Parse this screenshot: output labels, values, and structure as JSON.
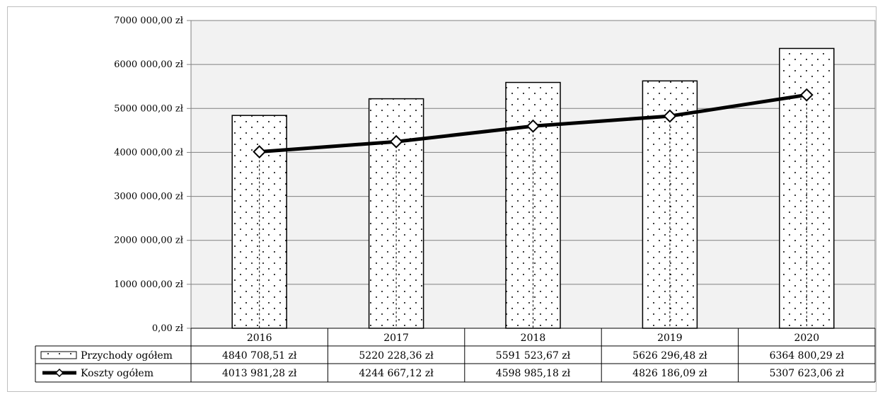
{
  "chart_data": {
    "type": "bar",
    "categories": [
      "2016",
      "2017",
      "2018",
      "2019",
      "2020"
    ],
    "series": [
      {
        "name": "Przychody ogółem",
        "type": "bar",
        "values": [
          4840708.51,
          5220228.36,
          5591523.67,
          5626296.48,
          6364800.29
        ],
        "labels": [
          "4840 708,51 zł",
          "5220 228,36 zł",
          "5591 523,67 zł",
          "5626 296,48 zł",
          "6364 800,29 zł"
        ]
      },
      {
        "name": "Koszty ogółem",
        "type": "line",
        "values": [
          4013981.28,
          4244667.12,
          4598985.18,
          4826186.09,
          5307623.06
        ],
        "labels": [
          "4013 981,28 zł",
          "4244 667,12 zł",
          "4598 985,18 zł",
          "4826 186,09 zł",
          "5307 623,06 zł"
        ]
      }
    ],
    "ylim": [
      0,
      7000000
    ],
    "yticks": [
      0,
      1000000,
      2000000,
      3000000,
      4000000,
      5000000,
      6000000,
      7000000
    ],
    "ytick_labels": [
      "0,00 zł",
      "1000 000,00 zł",
      "2000 000,00 zł",
      "3000 000,00 zł",
      "4000 000,00 zł",
      "5000 000,00 zł",
      "6000 000,00 zł",
      "7000 000,00 zł"
    ],
    "grid": true,
    "legend": "data-table",
    "colors": {
      "plot_background": "#f2f2f2",
      "bar_fill": "#ffffff",
      "bar_pattern_dot": "#000000",
      "line": "#000000",
      "marker_fill": "#ffffff",
      "gridline": "#808080"
    }
  }
}
